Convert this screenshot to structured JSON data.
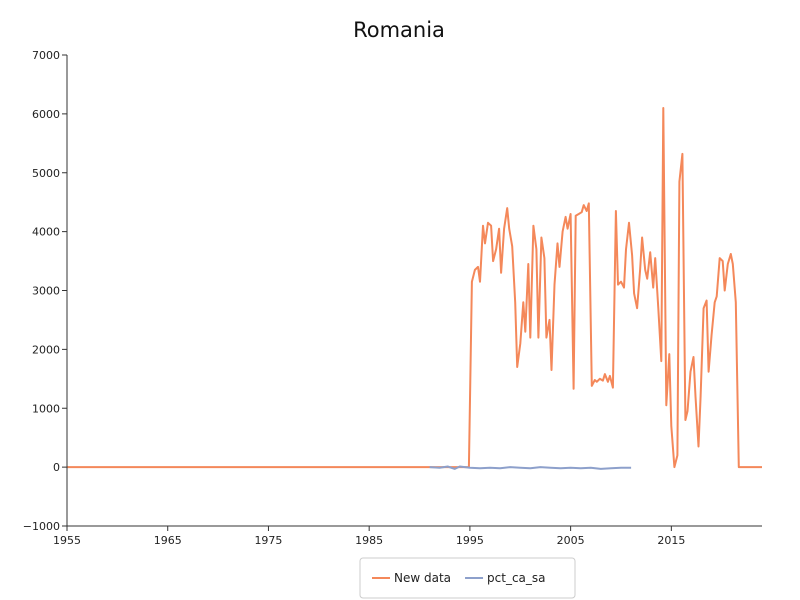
{
  "chart_data": {
    "type": "line",
    "title": "Romania",
    "xlabel": "",
    "ylabel": "",
    "xlim": [
      1955,
      2024
    ],
    "ylim": [
      -1000,
      7000
    ],
    "x_ticks": [
      1955,
      1965,
      1975,
      1985,
      1995,
      2005,
      2015
    ],
    "y_ticks": [
      -1000,
      0,
      1000,
      2000,
      3000,
      4000,
      5000,
      6000,
      7000
    ],
    "legend_position": "bottom-center",
    "series": [
      {
        "name": "New data",
        "color": "#f4885a",
        "points": [
          [
            1955.0,
            0
          ],
          [
            1994.9,
            0
          ],
          [
            1995.2,
            3150
          ],
          [
            1995.5,
            3350
          ],
          [
            1995.8,
            3400
          ],
          [
            1996.0,
            3150
          ],
          [
            1996.3,
            4100
          ],
          [
            1996.5,
            3800
          ],
          [
            1996.8,
            4150
          ],
          [
            1997.1,
            4100
          ],
          [
            1997.3,
            3500
          ],
          [
            1997.6,
            3700
          ],
          [
            1997.9,
            4050
          ],
          [
            1998.1,
            3300
          ],
          [
            1998.4,
            4050
          ],
          [
            1998.7,
            4400
          ],
          [
            1998.9,
            4050
          ],
          [
            1999.2,
            3750
          ],
          [
            1999.5,
            2800
          ],
          [
            1999.7,
            1700
          ],
          [
            2000.0,
            2100
          ],
          [
            2000.3,
            2800
          ],
          [
            2000.5,
            2300
          ],
          [
            2000.8,
            3450
          ],
          [
            2001.0,
            2200
          ],
          [
            2001.3,
            4100
          ],
          [
            2001.6,
            3700
          ],
          [
            2001.8,
            2200
          ],
          [
            2002.1,
            3900
          ],
          [
            2002.4,
            3550
          ],
          [
            2002.6,
            2200
          ],
          [
            2002.9,
            2500
          ],
          [
            2003.1,
            1650
          ],
          [
            2003.4,
            3100
          ],
          [
            2003.7,
            3800
          ],
          [
            2003.9,
            3400
          ],
          [
            2004.2,
            4000
          ],
          [
            2004.5,
            4250
          ],
          [
            2004.7,
            4050
          ],
          [
            2005.0,
            4300
          ],
          [
            2005.3,
            1330
          ],
          [
            2005.5,
            4270
          ],
          [
            2005.8,
            4300
          ],
          [
            2006.1,
            4330
          ],
          [
            2006.3,
            4450
          ],
          [
            2006.6,
            4350
          ],
          [
            2006.8,
            4480
          ],
          [
            2007.1,
            1380
          ],
          [
            2007.4,
            1480
          ],
          [
            2007.6,
            1450
          ],
          [
            2007.9,
            1500
          ],
          [
            2008.2,
            1470
          ],
          [
            2008.4,
            1580
          ],
          [
            2008.7,
            1450
          ],
          [
            2008.9,
            1550
          ],
          [
            2009.2,
            1350
          ],
          [
            2009.5,
            4350
          ],
          [
            2009.7,
            3100
          ],
          [
            2010.0,
            3150
          ],
          [
            2010.3,
            3050
          ],
          [
            2010.5,
            3700
          ],
          [
            2010.8,
            4150
          ],
          [
            2011.1,
            3600
          ],
          [
            2011.3,
            2950
          ],
          [
            2011.6,
            2700
          ],
          [
            2011.9,
            3350
          ],
          [
            2012.1,
            3900
          ],
          [
            2012.4,
            3350
          ],
          [
            2012.6,
            3200
          ],
          [
            2012.9,
            3650
          ],
          [
            2013.2,
            3050
          ],
          [
            2013.4,
            3550
          ],
          [
            2013.7,
            2700
          ],
          [
            2014.0,
            1800
          ],
          [
            2014.2,
            6100
          ],
          [
            2014.5,
            1050
          ],
          [
            2014.8,
            1920
          ],
          [
            2015.0,
            700
          ],
          [
            2015.3,
            0
          ],
          [
            2015.6,
            200
          ],
          [
            2015.8,
            4850
          ],
          [
            2016.1,
            5320
          ],
          [
            2016.4,
            800
          ],
          [
            2016.6,
            950
          ],
          [
            2016.9,
            1620
          ],
          [
            2017.2,
            1870
          ],
          [
            2017.4,
            1200
          ],
          [
            2017.7,
            350
          ],
          [
            2017.9,
            1200
          ],
          [
            2018.2,
            2700
          ],
          [
            2018.5,
            2830
          ],
          [
            2018.7,
            1620
          ],
          [
            2019.0,
            2250
          ],
          [
            2019.3,
            2800
          ],
          [
            2019.5,
            2900
          ],
          [
            2019.8,
            3550
          ],
          [
            2020.1,
            3500
          ],
          [
            2020.3,
            3000
          ],
          [
            2020.6,
            3450
          ],
          [
            2020.9,
            3620
          ],
          [
            2021.1,
            3450
          ],
          [
            2021.4,
            2800
          ],
          [
            2021.7,
            0
          ],
          [
            2024.0,
            0
          ]
        ]
      },
      {
        "name": "pct_ca_sa",
        "color": "#8da0cb",
        "points": [
          [
            1991.0,
            0
          ],
          [
            1992.0,
            -10
          ],
          [
            1992.8,
            10
          ],
          [
            1993.5,
            -30
          ],
          [
            1994.0,
            10
          ],
          [
            1995.0,
            -10
          ],
          [
            1996.0,
            -20
          ],
          [
            1997.0,
            -10
          ],
          [
            1998.0,
            -20
          ],
          [
            1999.0,
            0
          ],
          [
            2000.0,
            -10
          ],
          [
            2001.0,
            -20
          ],
          [
            2002.0,
            0
          ],
          [
            2003.0,
            -10
          ],
          [
            2004.0,
            -20
          ],
          [
            2005.0,
            -10
          ],
          [
            2006.0,
            -20
          ],
          [
            2007.0,
            -10
          ],
          [
            2008.0,
            -30
          ],
          [
            2009.0,
            -20
          ],
          [
            2010.0,
            -10
          ],
          [
            2011.0,
            -10
          ]
        ]
      }
    ]
  }
}
